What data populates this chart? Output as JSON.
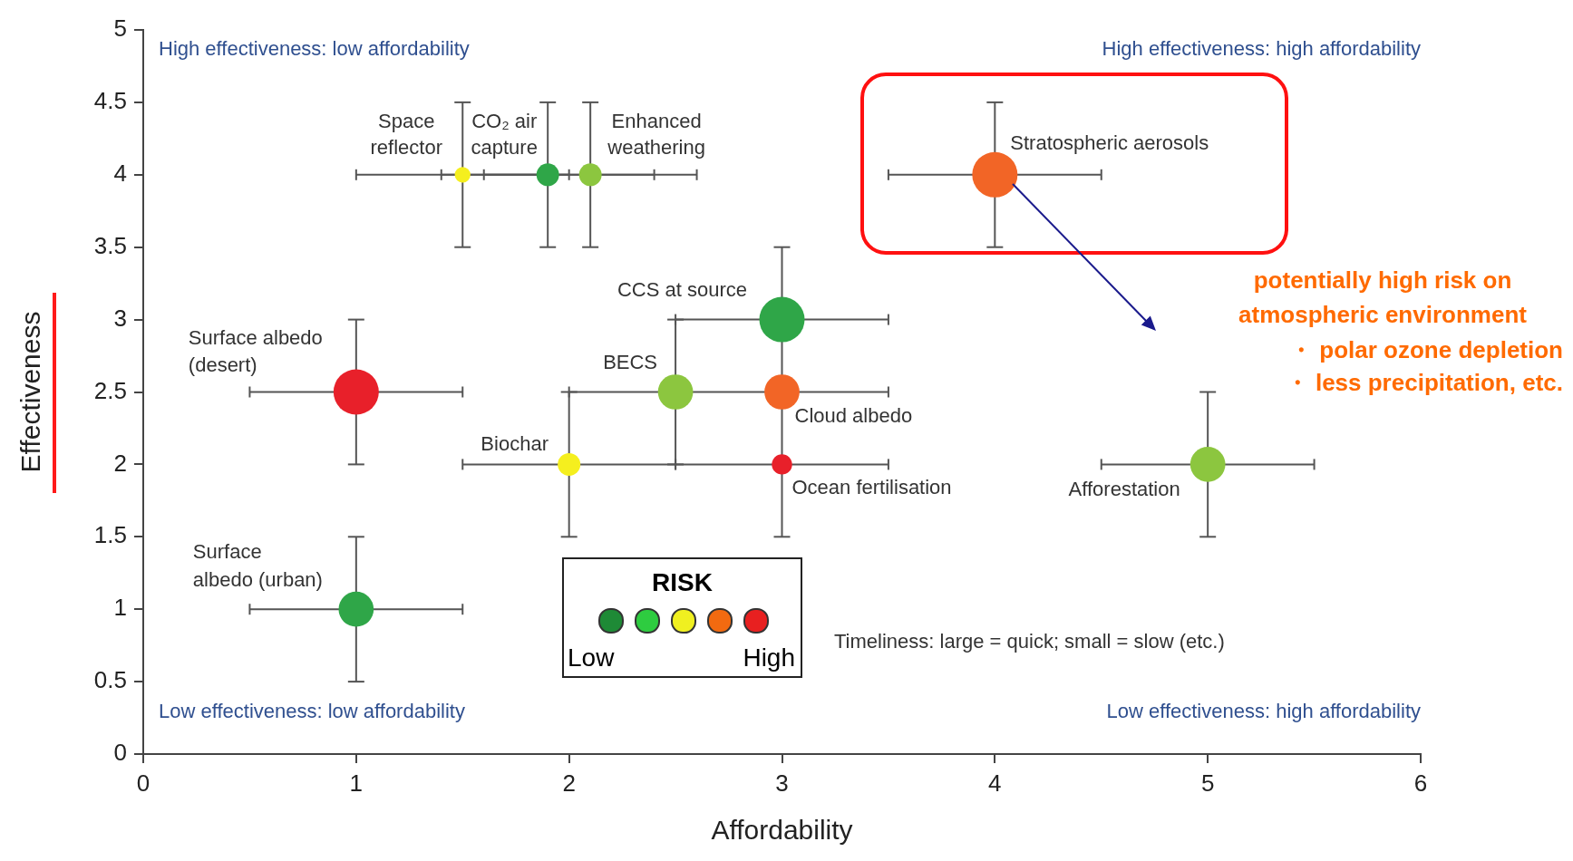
{
  "chart_data": {
    "type": "bubble",
    "xlabel": "Affordability",
    "ylabel": "Effectiveness",
    "xlim": [
      0,
      6
    ],
    "xticks": [
      0,
      1,
      2,
      3,
      4,
      5,
      6
    ],
    "ylim": [
      0,
      5
    ],
    "yticks": [
      0,
      0.5,
      1,
      1.5,
      2,
      2.5,
      3,
      3.5,
      4,
      4.5,
      5
    ],
    "grid": false,
    "legend_title": "RISK",
    "series": [
      {
        "name": "Space reflector",
        "color": "#f5ef1e",
        "x": [
          1.5
        ],
        "values": [
          4
        ],
        "sizes": [
          0.12
        ],
        "xerrors": [
          0.5
        ],
        "errors": [
          0.5
        ]
      },
      {
        "name": "CO₂ air capture",
        "color": "#2fa648",
        "x": [
          1.9
        ],
        "values": [
          4
        ],
        "sizes": [
          0.25
        ],
        "xerrors": [
          0.5
        ],
        "errors": [
          0.5
        ]
      },
      {
        "name": "Enhanced weathering",
        "color": "#8cc63f",
        "x": [
          2.1
        ],
        "values": [
          4
        ],
        "sizes": [
          0.25
        ],
        "xerrors": [
          0.5
        ],
        "errors": [
          0.5
        ]
      },
      {
        "name": "Stratospheric aerosols",
        "color": "#f26526",
        "x": [
          4
        ],
        "values": [
          4
        ],
        "sizes": [
          1
        ],
        "xerrors": [
          0.5
        ],
        "errors": [
          0.5
        ]
      },
      {
        "name": "CCS at source",
        "color": "#2fa648",
        "x": [
          3
        ],
        "values": [
          3
        ],
        "sizes": [
          1
        ],
        "xerrors": [
          0.5
        ],
        "errors": [
          0.5
        ]
      },
      {
        "name": "Surface albedo (desert)",
        "color": "#e8202a",
        "x": [
          1
        ],
        "values": [
          2.5
        ],
        "sizes": [
          1
        ],
        "xerrors": [
          0.5
        ],
        "errors": [
          0.5
        ]
      },
      {
        "name": "BECS",
        "color": "#8cc63f",
        "x": [
          2.5
        ],
        "values": [
          2.5
        ],
        "sizes": [
          0.6
        ],
        "xerrors": [
          [
            2,
            3.5
          ]
        ],
        "errors": [
          [
            2,
            3
          ]
        ]
      },
      {
        "name": "Cloud albedo",
        "color": "#f26526",
        "x": [
          3
        ],
        "values": [
          2.5
        ],
        "sizes": [
          0.6
        ]
      },
      {
        "name": "Biochar",
        "color": "#f5ef1e",
        "x": [
          2
        ],
        "values": [
          2
        ],
        "sizes": [
          0.25
        ],
        "xerrors": [
          0.5
        ],
        "errors": [
          0.5
        ]
      },
      {
        "name": "Ocean fertilisation",
        "color": "#e8202a",
        "x": [
          3
        ],
        "values": [
          2
        ],
        "sizes": [
          0.2
        ],
        "xerrors": [
          [
            2.5,
            3.5
          ]
        ],
        "errors": [
          0.5
        ]
      },
      {
        "name": "Afforestation",
        "color": "#8cc63f",
        "x": [
          5
        ],
        "values": [
          2
        ],
        "sizes": [
          0.6
        ],
        "xerrors": [
          0.5
        ],
        "errors": [
          0.5
        ]
      },
      {
        "name": "Surface albedo (urban)",
        "color": "#2fa648",
        "x": [
          1
        ],
        "values": [
          1
        ],
        "sizes": [
          0.6
        ],
        "xerrors": [
          0.5
        ],
        "errors": [
          0.5
        ]
      }
    ],
    "annotations": [
      "High effectiveness: low affordability",
      "High effectiveness: high affordability",
      "Low effectiveness: low affordability",
      "Low effectiveness: high affordability",
      "Timeliness: large = quick; small = slow (etc.)",
      "potentially high risk on",
      "atmospheric environment",
      "・ polar ozone depletion",
      "・ less precipitation, etc.",
      "Low",
      "High"
    ]
  }
}
